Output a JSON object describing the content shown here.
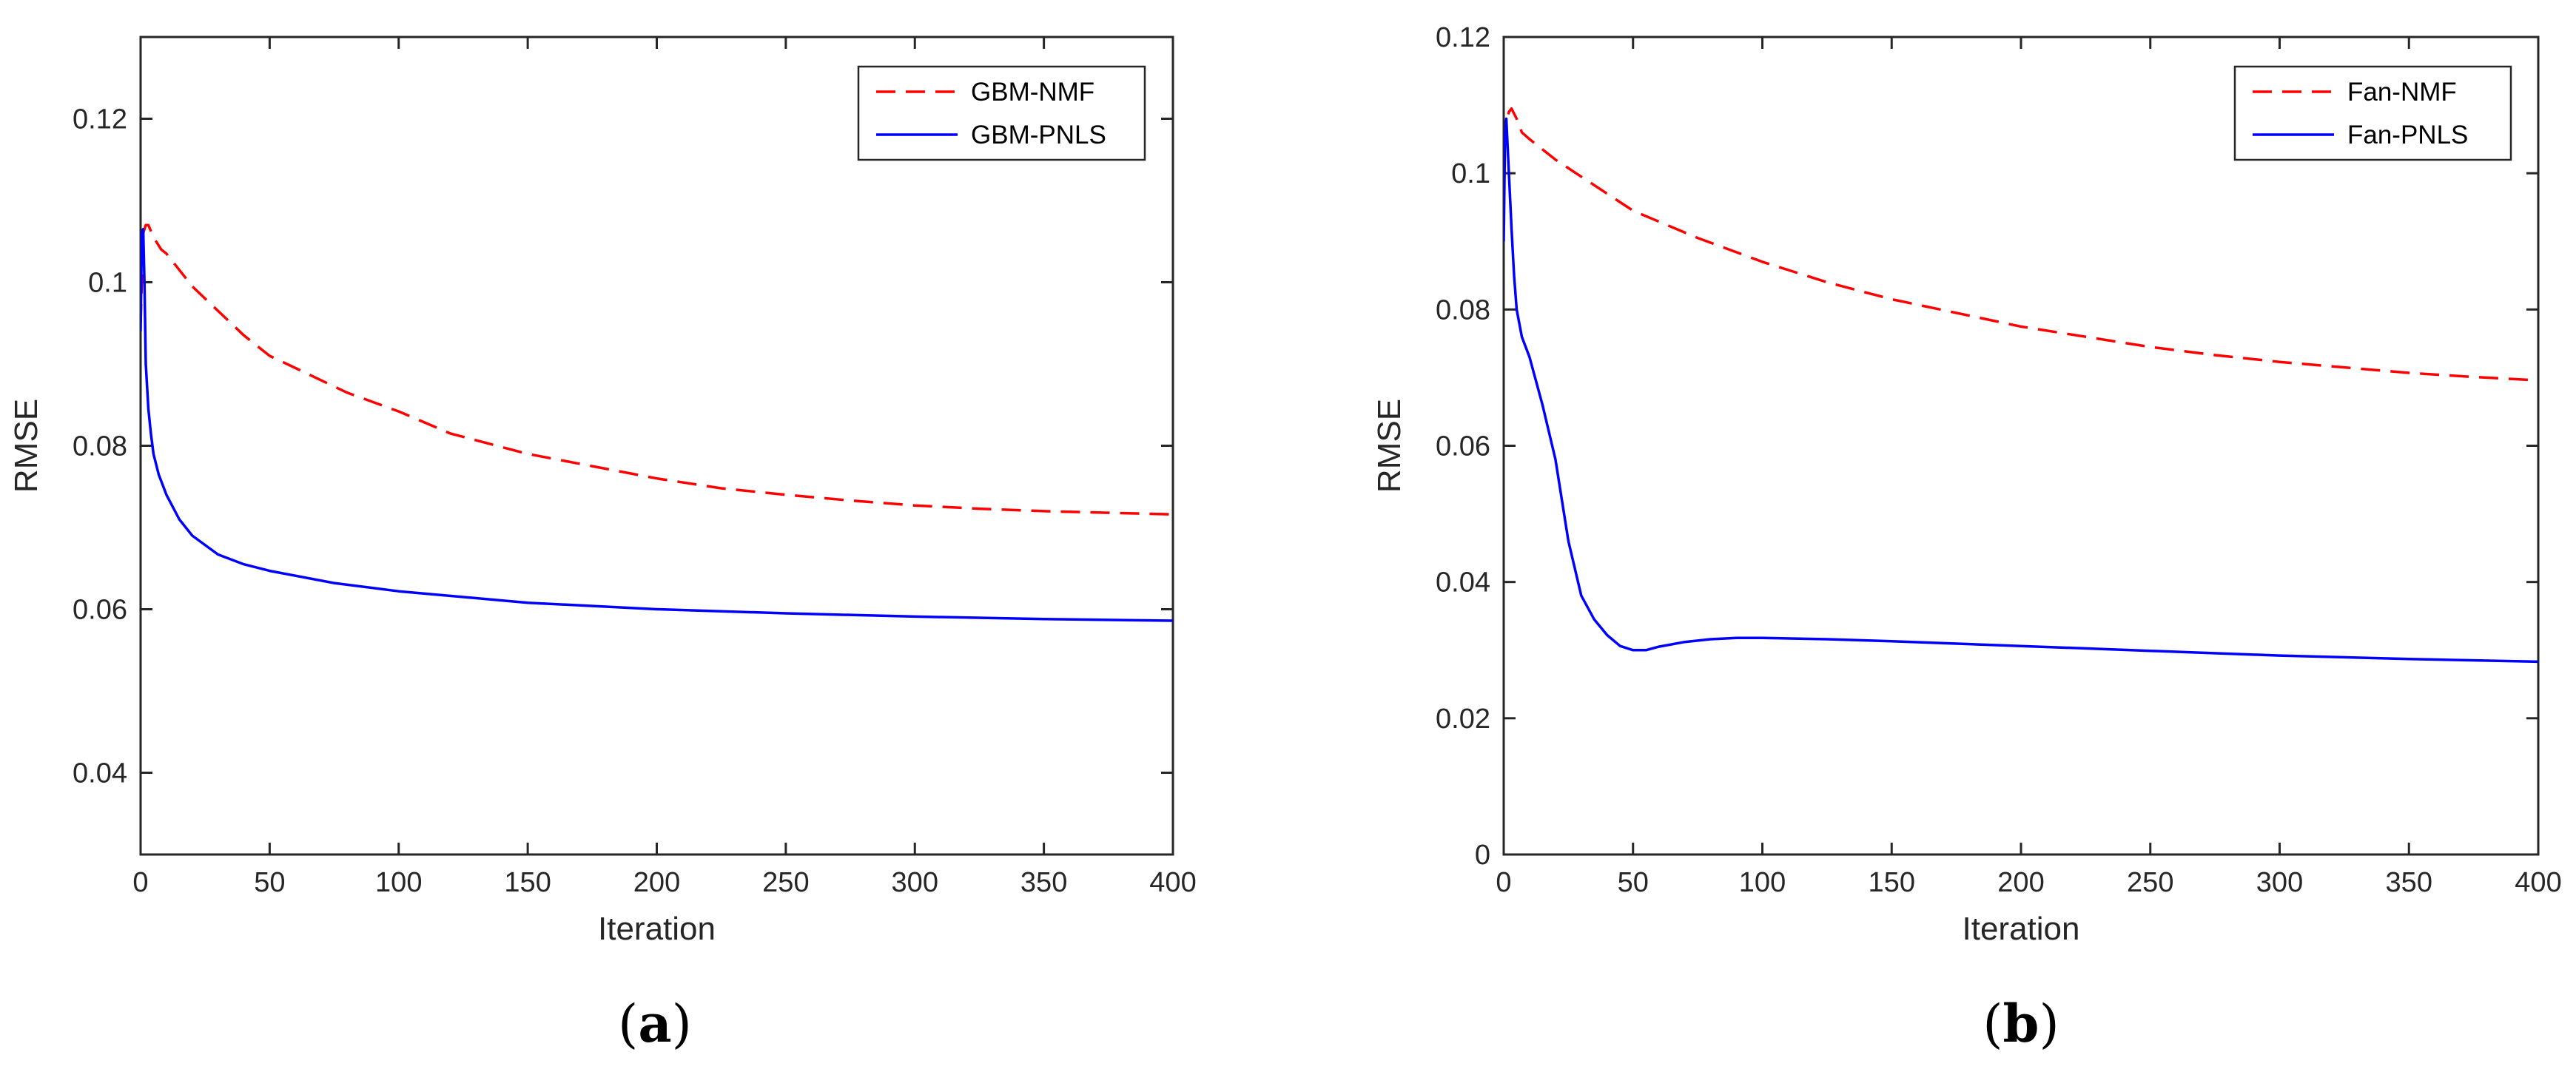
{
  "chart_data": [
    {
      "type": "line",
      "panel_label": "a",
      "title": "",
      "xlabel": "Iteration",
      "ylabel": "RMSE",
      "xlim": [
        0,
        400
      ],
      "ylim": [
        0.03,
        0.13
      ],
      "xticks": [
        0,
        50,
        100,
        150,
        200,
        250,
        300,
        350,
        400
      ],
      "xtick_labels": [
        "0",
        "50",
        "100",
        "150",
        "200",
        "250",
        "300",
        "350",
        "400"
      ],
      "yticks": [
        0.04,
        0.06,
        0.08,
        0.1,
        0.12
      ],
      "ytick_labels": [
        "0.04",
        "0.06",
        "0.08",
        "0.1",
        "0.12"
      ],
      "grid": false,
      "legend_position": "top-right",
      "series": [
        {
          "name": "GBM-NMF",
          "color": "#ff0000",
          "style": "dashed",
          "x": [
            0,
            1,
            2,
            3,
            5,
            8,
            10,
            20,
            30,
            40,
            50,
            60,
            80,
            100,
            120,
            150,
            175,
            200,
            225,
            250,
            275,
            300,
            325,
            350,
            375,
            400
          ],
          "y": [
            0.095,
            0.106,
            0.107,
            0.107,
            0.1055,
            0.104,
            0.1035,
            0.0995,
            0.0965,
            0.0935,
            0.091,
            0.0895,
            0.0865,
            0.0842,
            0.0815,
            0.079,
            0.0775,
            0.076,
            0.0748,
            0.074,
            0.0733,
            0.0727,
            0.0723,
            0.072,
            0.0718,
            0.0716
          ]
        },
        {
          "name": "GBM-PNLS",
          "color": "#0000ff",
          "style": "solid",
          "x": [
            0,
            0.5,
            1,
            1.5,
            2,
            3,
            4,
            5,
            7,
            10,
            15,
            20,
            30,
            40,
            50,
            75,
            100,
            150,
            200,
            250,
            300,
            350,
            400
          ],
          "y": [
            0.094,
            0.106,
            0.1065,
            0.1,
            0.09,
            0.0845,
            0.0815,
            0.079,
            0.0765,
            0.074,
            0.071,
            0.069,
            0.0667,
            0.0655,
            0.0647,
            0.0632,
            0.0622,
            0.0608,
            0.06,
            0.0595,
            0.0591,
            0.0588,
            0.0586
          ]
        }
      ]
    },
    {
      "type": "line",
      "panel_label": "b",
      "title": "",
      "xlabel": "Iteration",
      "ylabel": "RMSE",
      "xlim": [
        0,
        400
      ],
      "ylim": [
        0,
        0.12
      ],
      "xticks": [
        0,
        50,
        100,
        150,
        200,
        250,
        300,
        350,
        400
      ],
      "xtick_labels": [
        "0",
        "50",
        "100",
        "150",
        "200",
        "250",
        "300",
        "350",
        "400"
      ],
      "yticks": [
        0,
        0.02,
        0.04,
        0.06,
        0.08,
        0.1,
        0.12
      ],
      "ytick_labels": [
        "0",
        "0.02",
        "0.04",
        "0.06",
        "0.08",
        "0.1",
        "0.12"
      ],
      "grid": false,
      "legend_position": "top-right",
      "series": [
        {
          "name": "Fan-NMF",
          "color": "#ff0000",
          "style": "dashed",
          "x": [
            0,
            1,
            2,
            3,
            5,
            7,
            10,
            20,
            30,
            40,
            50,
            75,
            100,
            125,
            150,
            175,
            200,
            225,
            250,
            275,
            300,
            325,
            350,
            375,
            400
          ],
          "y": [
            0.1,
            0.107,
            0.109,
            0.1095,
            0.108,
            0.106,
            0.105,
            0.102,
            0.0995,
            0.097,
            0.0945,
            0.0905,
            0.087,
            0.084,
            0.0815,
            0.0795,
            0.0775,
            0.076,
            0.0745,
            0.0733,
            0.0723,
            0.0715,
            0.0707,
            0.0701,
            0.0696
          ]
        },
        {
          "name": "Fan-PNLS",
          "color": "#0000ff",
          "style": "solid",
          "x": [
            0,
            0.5,
            1,
            2,
            3,
            4,
            5,
            7,
            10,
            15,
            20,
            25,
            30,
            35,
            40,
            45,
            50,
            55,
            60,
            70,
            80,
            90,
            100,
            125,
            150,
            200,
            250,
            300,
            350,
            400
          ],
          "y": [
            0.09,
            0.105,
            0.108,
            0.1,
            0.092,
            0.085,
            0.08,
            0.076,
            0.073,
            0.066,
            0.058,
            0.046,
            0.038,
            0.0345,
            0.0322,
            0.0306,
            0.03,
            0.03,
            0.0305,
            0.0312,
            0.0316,
            0.0318,
            0.0318,
            0.0316,
            0.0313,
            0.0306,
            0.0299,
            0.0292,
            0.0287,
            0.0283
          ]
        }
      ]
    }
  ]
}
